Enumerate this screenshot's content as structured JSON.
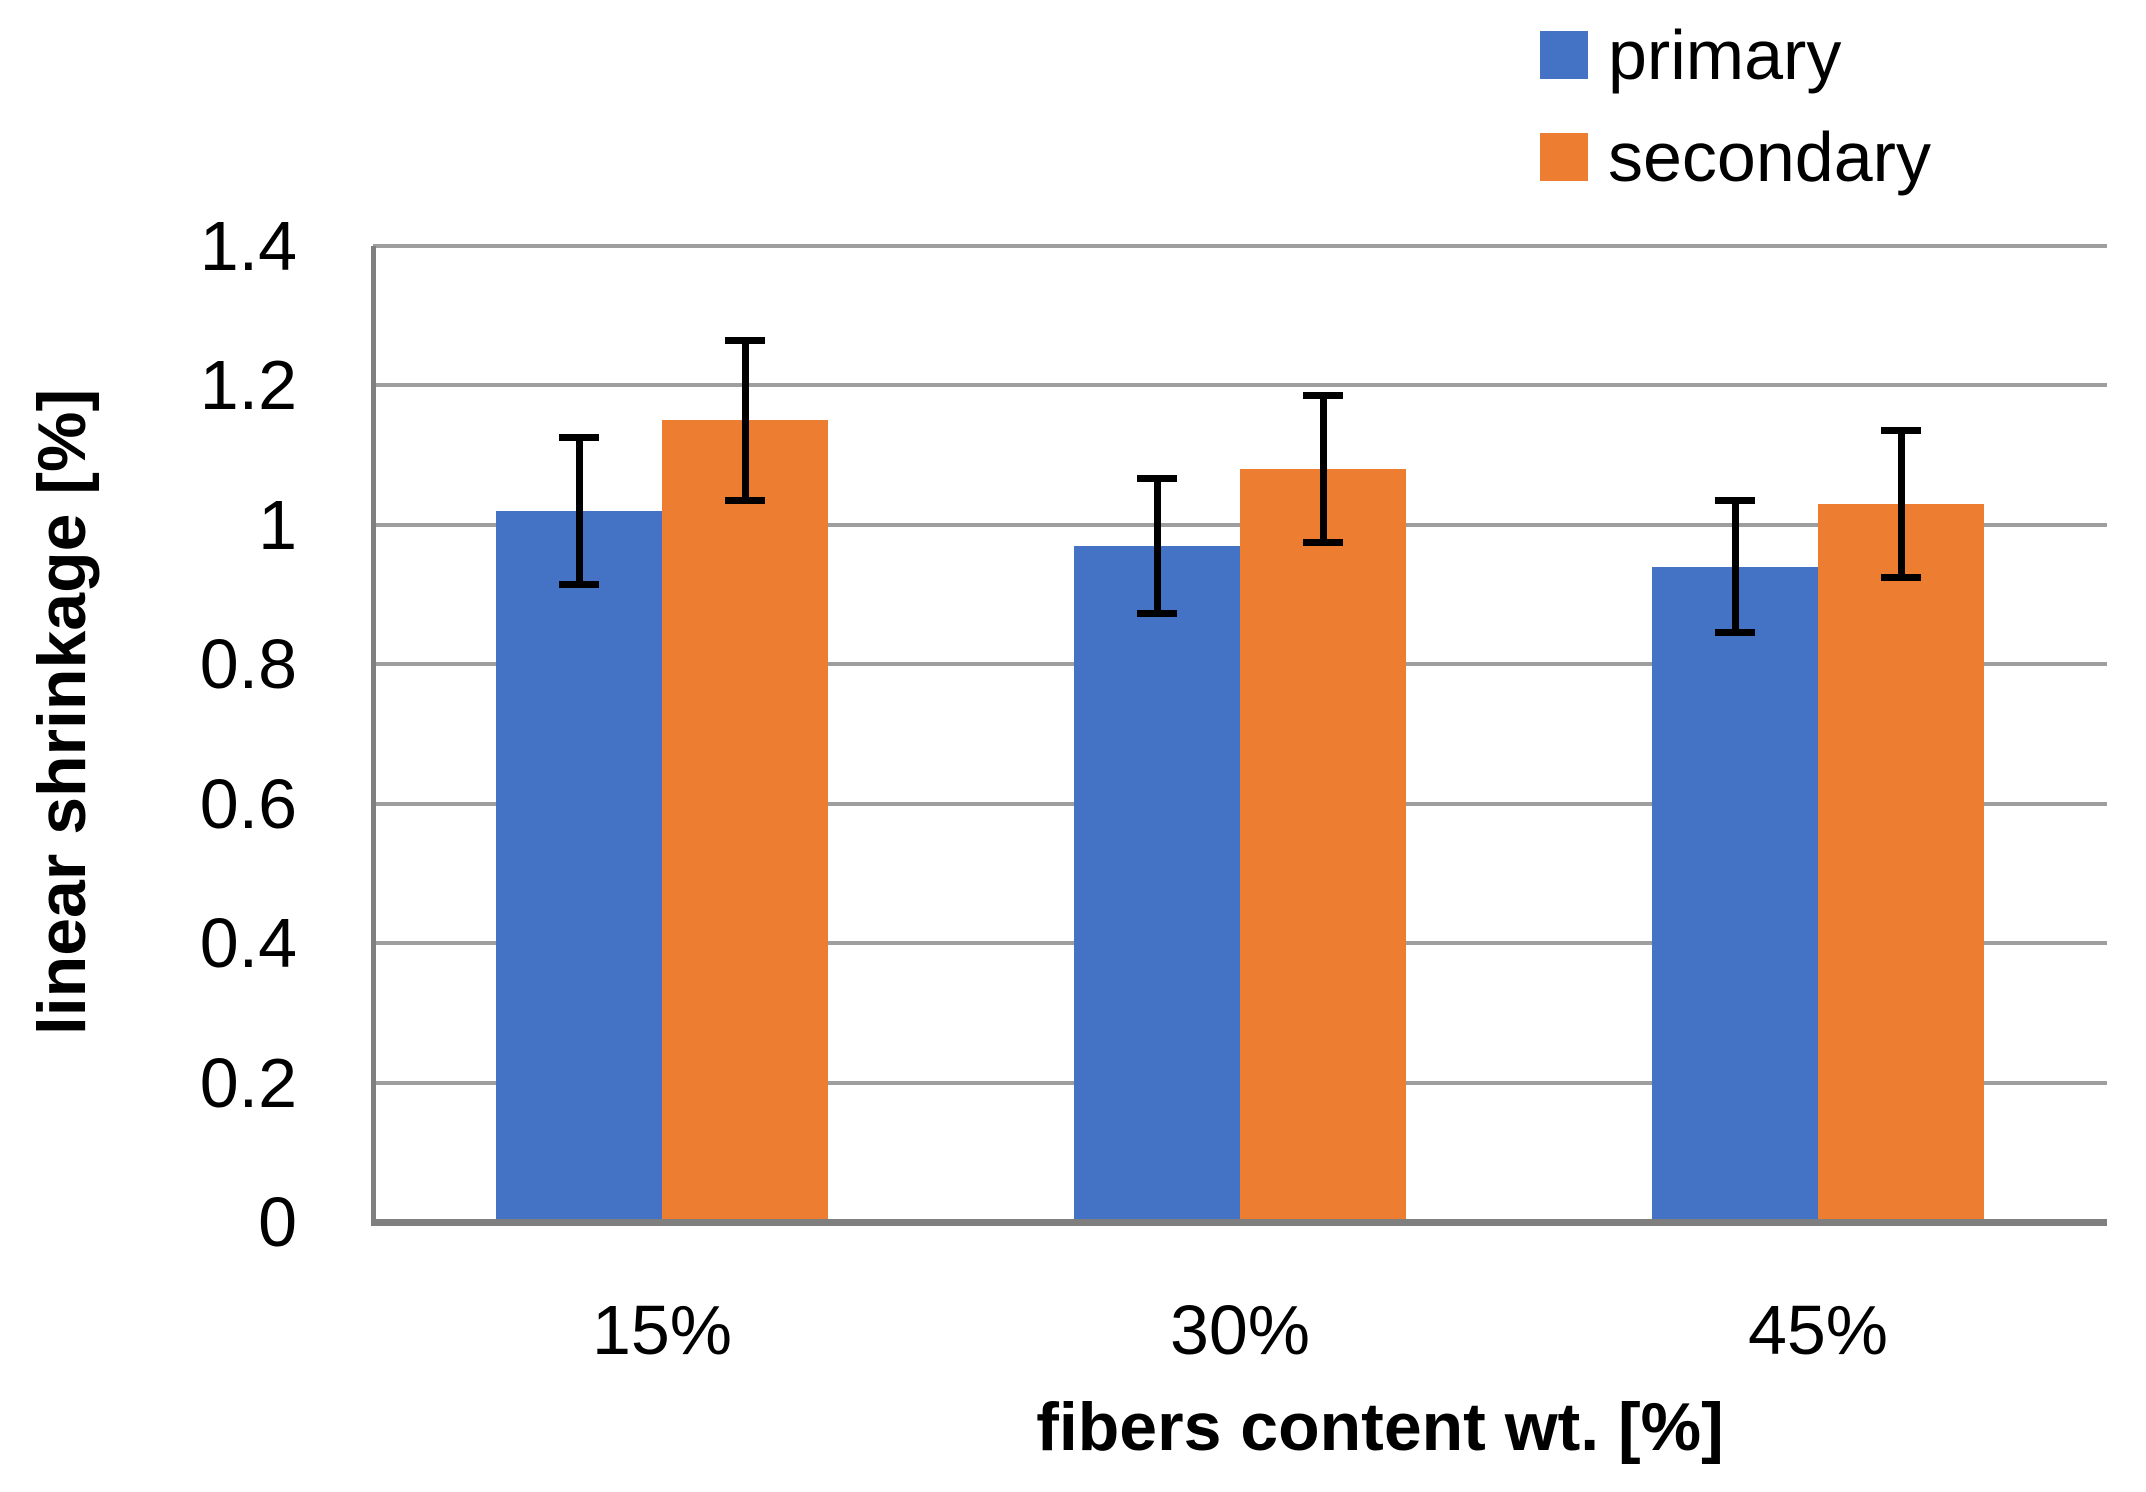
{
  "figure": {
    "background": "#ffffff"
  },
  "chart_data": {
    "type": "bar",
    "title": "",
    "xlabel": "fibers content wt. [%]",
    "ylabel": "linear shrinkage [%]",
    "categories": [
      "15%",
      "30%",
      "45%"
    ],
    "series": [
      {
        "name": "primary",
        "color": "#4472C4",
        "values": [
          1.02,
          0.97,
          0.94
        ],
        "errors": [
          0.105,
          0.097,
          0.095
        ]
      },
      {
        "name": "secondary",
        "color": "#ED7D31",
        "values": [
          1.15,
          1.08,
          1.03
        ],
        "errors": [
          0.115,
          0.106,
          0.105
        ]
      }
    ],
    "ylim": [
      0,
      1.4
    ],
    "ytick_step": 0.2,
    "yticks": [
      "0",
      "0.2",
      "0.4",
      "0.6",
      "0.8",
      "1",
      "1.2",
      "1.4"
    ],
    "grid": "horizontal",
    "legend_position": "top-right",
    "error_bars": true,
    "gridline_color": "#9E9E9E",
    "axis_line_color": "#7F7F7F",
    "error_bar_color": "#000000"
  }
}
